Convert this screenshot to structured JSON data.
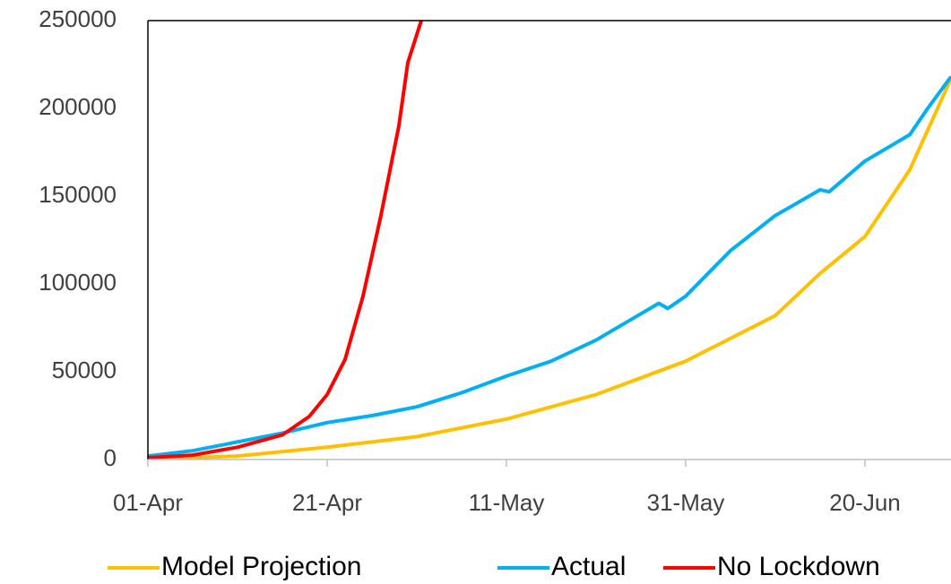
{
  "chart_data": {
    "type": "line",
    "xlim": [
      0,
      89.6
    ],
    "xticks": [
      {
        "value": 0,
        "label": "01-Apr"
      },
      {
        "value": 20,
        "label": "21-Apr"
      },
      {
        "value": 40,
        "label": "11-May"
      },
      {
        "value": 60,
        "label": "31-May"
      },
      {
        "value": 80,
        "label": "20-Jun"
      }
    ],
    "ylim": [
      0,
      250000
    ],
    "yticks": [
      0,
      50000,
      100000,
      150000,
      200000,
      250000
    ],
    "grid": false,
    "legend": "bottom",
    "series": [
      {
        "name": "Model Projection",
        "color": "#FFC000",
        "x": [
          0,
          10,
          20,
          30,
          40,
          50,
          60,
          70,
          75,
          80,
          85,
          89.6
        ],
        "values": [
          0,
          2000,
          7000,
          13000,
          23000,
          37000,
          56000,
          82000,
          106000,
          127000,
          165000,
          217000
        ]
      },
      {
        "name": "Actual",
        "color": "#00B0F0",
        "x": [
          0,
          5,
          10,
          15,
          20,
          25,
          30,
          35,
          40,
          45,
          50,
          55,
          57,
          58,
          60,
          65,
          70,
          75,
          76,
          80,
          85,
          87,
          89.6
        ],
        "values": [
          2000,
          5000,
          10000,
          15000,
          21000,
          25000,
          30000,
          38000,
          47500,
          56000,
          68000,
          83000,
          89000,
          86000,
          93000,
          119000,
          139000,
          153600,
          152500,
          170000,
          185000,
          200000,
          218000
        ]
      },
      {
        "name": "No Lockdown",
        "color": "#FF0000",
        "x": [
          0,
          5,
          10,
          15,
          18,
          20,
          22,
          24,
          26,
          28,
          29,
          30.5
        ],
        "values": [
          1000,
          2500,
          7000,
          14000,
          24500,
          37000,
          57000,
          93000,
          139000,
          190000,
          226000,
          250000
        ]
      }
    ]
  }
}
